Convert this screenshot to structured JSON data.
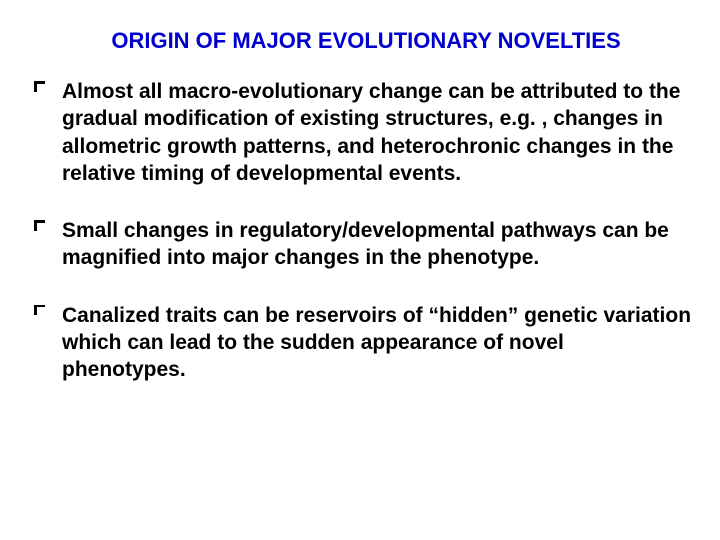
{
  "title": {
    "text": "ORIGIN OF MAJOR EVOLUTIONARY NOVELTIES",
    "color": "#0000cc",
    "fontsize": 22
  },
  "body": {
    "color": "#000000",
    "fontsize": 21,
    "bullets": [
      "Almost all macro-evolutionary change can be attributed to the gradual modification of existing structures, e.g. , changes in allometric growth patterns, and heterochronic changes in the relative timing of developmental events.",
      "Small changes in regulatory/developmental pathways can be magnified into major changes in the phenotype.",
      "Canalized traits can be reservoirs of “hidden” genetic variation which can lead to the sudden appearance of novel phenotypes."
    ]
  },
  "background_color": "#ffffff"
}
